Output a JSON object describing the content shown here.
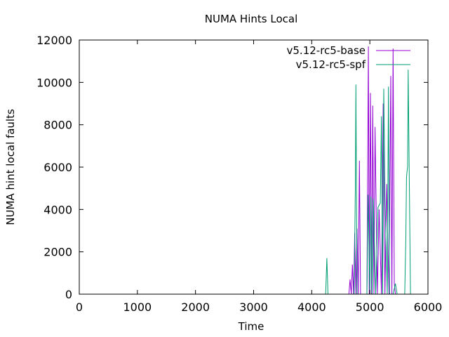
{
  "chart_data": {
    "type": "line",
    "title": "NUMA Hints Local",
    "xlabel": "Time",
    "ylabel": "NUMA hint local faults",
    "xlim": [
      0,
      6000
    ],
    "ylim": [
      0,
      12000
    ],
    "xticks": [
      "0",
      "1000",
      "2000",
      "3000",
      "4000",
      "5000",
      "6000"
    ],
    "yticks": [
      "0",
      "2000",
      "4000",
      "6000",
      "8000",
      "10000",
      "12000"
    ],
    "grid": false,
    "legend_position": "top-right",
    "series": [
      {
        "name": "v5.12-rc5-base",
        "color": "#9400d3",
        "x": [
          0,
          4640,
          4660,
          4680,
          4700,
          4720,
          4740,
          4760,
          4780,
          4800,
          4820,
          4840,
          4900,
          4950,
          4975,
          4990,
          5010,
          5030,
          5050,
          5070,
          5090,
          5130,
          5160,
          5200,
          5230,
          5260,
          5290,
          5330,
          5360,
          5380,
          5400,
          5420,
          5440,
          5500,
          5600,
          5700
        ],
        "y": [
          0,
          0,
          700,
          0,
          1400,
          0,
          2900,
          0,
          3100,
          0,
          6300,
          0,
          0,
          0,
          11700,
          0,
          9500,
          0,
          8900,
          0,
          7900,
          0,
          4000,
          0,
          9000,
          0,
          5200,
          0,
          10300,
          0,
          11600,
          500,
          0,
          0,
          0,
          0
        ]
      },
      {
        "name": "v5.12-rc5-spf",
        "color": "#009e73",
        "x": [
          0,
          4240,
          4260,
          4280,
          4730,
          4750,
          4760,
          4780,
          4900,
          4950,
          4970,
          5000,
          5020,
          5040,
          5060,
          5100,
          5140,
          5160,
          5180,
          5200,
          5220,
          5240,
          5260,
          5300,
          5320,
          5340,
          5360,
          5400,
          5440,
          5470,
          5500,
          5550,
          5600,
          5620,
          5630,
          5640,
          5650,
          5660,
          5700
        ],
        "y": [
          0,
          0,
          1700,
          0,
          0,
          5000,
          9900,
          0,
          0,
          0,
          4700,
          0,
          4600,
          0,
          4500,
          0,
          4100,
          4200,
          4300,
          8400,
          0,
          9700,
          4700,
          0,
          9800,
          0,
          0,
          0,
          500,
          0,
          0,
          0,
          0,
          2700,
          5500,
          5800,
          6000,
          10600,
          0
        ]
      }
    ]
  }
}
